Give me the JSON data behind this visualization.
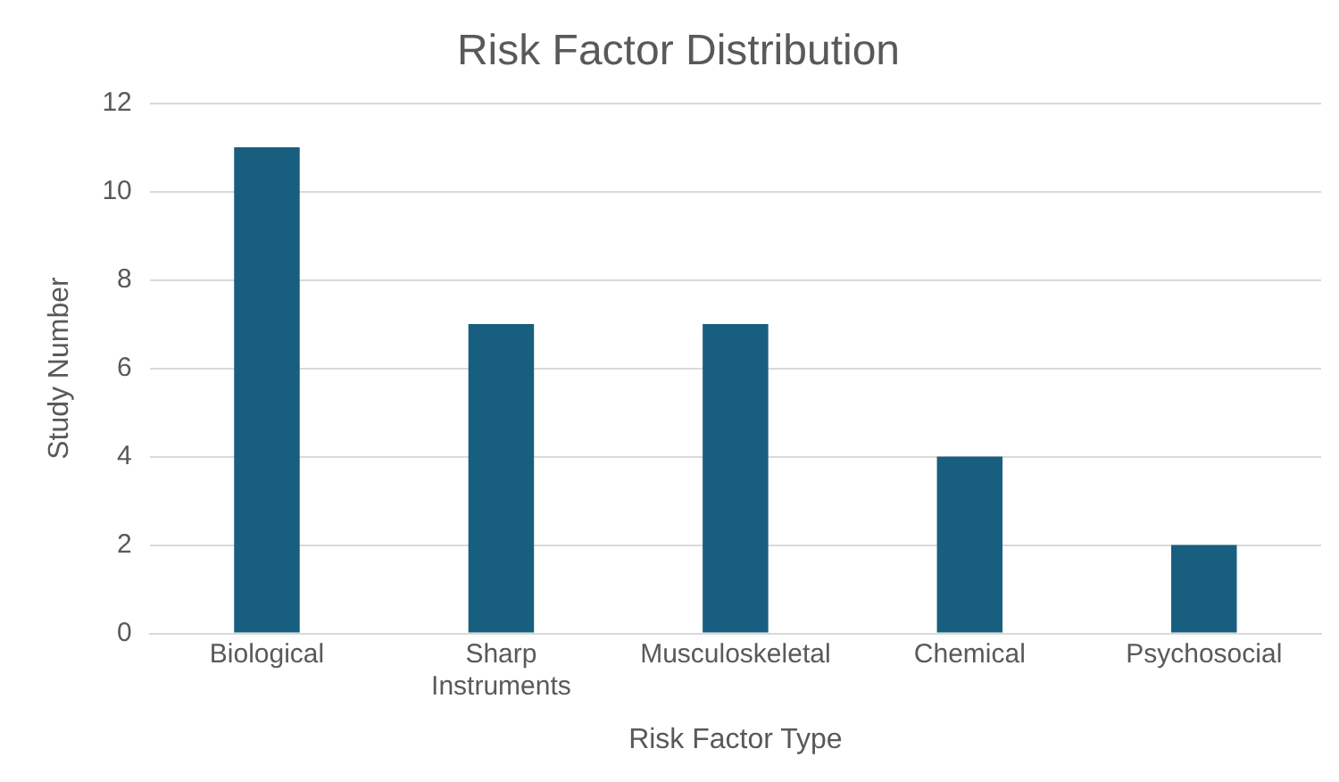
{
  "chart_data": {
    "type": "bar",
    "title": "Risk Factor Distribution",
    "xlabel": "Risk Factor Type",
    "ylabel": "Study Number",
    "categories": [
      "Biological",
      "Sharp Instruments",
      "Musculoskeletal",
      "Chemical",
      "Psychosocial"
    ],
    "values": [
      11,
      7,
      7,
      4,
      2
    ],
    "color": "#175e7f",
    "ylim": [
      0,
      12
    ],
    "yticks": [
      0,
      2,
      4,
      6,
      8,
      10,
      12
    ],
    "grid": "y",
    "legend": false
  }
}
